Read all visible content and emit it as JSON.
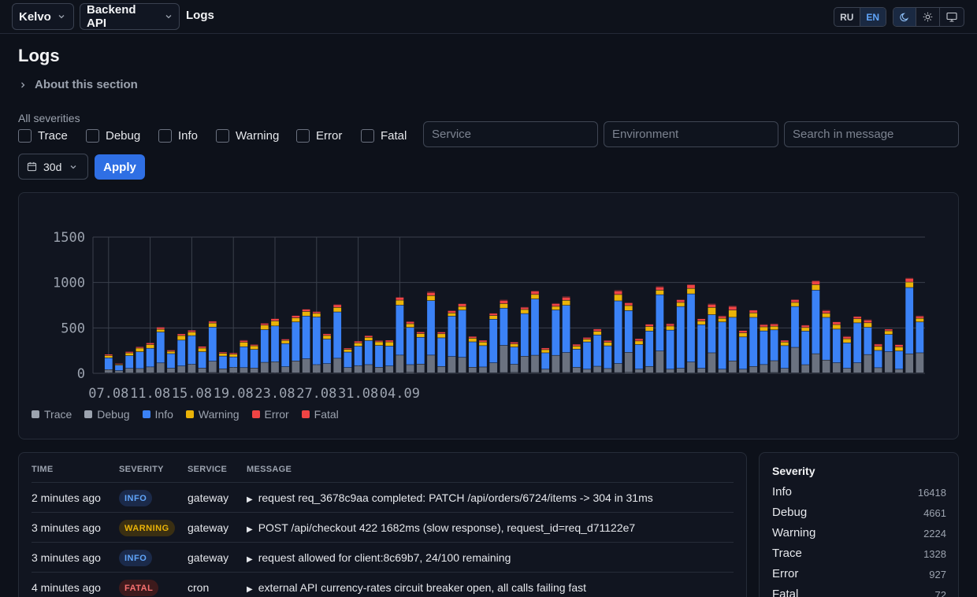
{
  "header": {
    "org": "Kelvo",
    "project": "Backend API",
    "breadcrumb": "Logs",
    "lang": [
      "RU",
      "EN"
    ],
    "lang_active": "EN",
    "themes": [
      "moon-icon",
      "sun-icon",
      "monitor-icon"
    ]
  },
  "page": {
    "title": "Logs",
    "about": "About this section"
  },
  "filters": {
    "all_label": "All severities",
    "severities": [
      "Trace",
      "Debug",
      "Info",
      "Warning",
      "Error",
      "Fatal"
    ],
    "service_placeholder": "Service",
    "environment_placeholder": "Environment",
    "search_placeholder": "Search in message",
    "range": "30d",
    "apply": "Apply"
  },
  "chart_data": {
    "type": "bar",
    "stacked": true,
    "ylim": [
      0,
      1500
    ],
    "yticks": [
      0,
      500,
      1000,
      1500
    ],
    "xtick_labels": [
      {
        "label": "07.08",
        "index": 1
      },
      {
        "label": "11.08",
        "index": 5
      },
      {
        "label": "15.08",
        "index": 9
      },
      {
        "label": "19.08",
        "index": 13
      },
      {
        "label": "23.08",
        "index": 17
      },
      {
        "label": "27.08",
        "index": 21
      },
      {
        "label": "31.08",
        "index": 25
      },
      {
        "label": "04.09",
        "index": 29
      }
    ],
    "legend_position": "bottom-left",
    "series": [
      {
        "name": "Trace",
        "color": "#9ca3af",
        "values": [
          5,
          3,
          2,
          2,
          2,
          3,
          2,
          4,
          3,
          2,
          3,
          6,
          2,
          3,
          2,
          3,
          3,
          4,
          5,
          3,
          3,
          3,
          4,
          3,
          6,
          2,
          3,
          4,
          3,
          3,
          8,
          4,
          3,
          3,
          2,
          3,
          4,
          2,
          3,
          5,
          7,
          5,
          6,
          3,
          5,
          6,
          3,
          3,
          5,
          5,
          5,
          8,
          4,
          3,
          3,
          3,
          3,
          2,
          3,
          3,
          3,
          4,
          3,
          3,
          4,
          6,
          2,
          3,
          2,
          3,
          3,
          4,
          3,
          3,
          4,
          4,
          5,
          3,
          2,
          3
        ]
      },
      {
        "name": "Debug",
        "color": "#9ca3af",
        "values": [
          0,
          35,
          25,
          50,
          48,
          65,
          110,
          50,
          75,
          95,
          52,
          125,
          45,
          60,
          58,
          52,
          115,
          120,
          65,
          130,
          155,
          90,
          100,
          160,
          55,
          80,
          90,
          60,
          75,
          195,
          85,
          95,
          195,
          70,
          180,
          170,
          60,
          65,
          110,
          300,
          90,
          180,
          190,
          40,
          190,
          220,
          60,
          40,
          70,
          45,
          100,
          220,
          40,
          70,
          240,
          40,
          50,
          120,
          50,
          220,
          40,
          130,
          40,
          70,
          90,
          130,
          50,
          280,
          90,
          210,
          140,
          110,
          50,
          110,
          200,
          55,
          230,
          40,
          210,
          220
        ]
      },
      {
        "name": "Info",
        "color": "#3b82f6",
        "values": [
          0,
          130,
          60,
          140,
          185,
          205,
          340,
          160,
          285,
          315,
          180,
          375,
          140,
          115,
          230,
          205,
          360,
          395,
          255,
          430,
          470,
          525,
          270,
          510,
          170,
          215,
          265,
          240,
          220,
          550,
          410,
          295,
          600,
          315,
          445,
          520,
          280,
          235,
          480,
          410,
          190,
          470,
          620,
          180,
          500,
          520,
          200,
          300,
          345,
          250,
          690,
          460,
          270,
          390,
          620,
          430,
          680,
          750,
          480,
          420,
          520,
          480,
          355,
          540,
          370,
          340,
          250,
          450,
          370,
          700,
          470,
          370,
          280,
          440,
          300,
          190,
          190,
          200,
          730,
          340
        ]
      },
      {
        "name": "Warning",
        "color": "#eab308",
        "values": [
          0,
          25,
          10,
          30,
          40,
          40,
          30,
          25,
          50,
          40,
          40,
          45,
          30,
          30,
          50,
          40,
          50,
          55,
          35,
          45,
          50,
          40,
          40,
          50,
          30,
          35,
          35,
          40,
          45,
          55,
          40,
          40,
          55,
          45,
          35,
          40,
          40,
          40,
          40,
          50,
          35,
          45,
          50,
          35,
          40,
          55,
          35,
          30,
          40,
          40,
          70,
          55,
          40,
          50,
          50,
          45,
          45,
          60,
          40,
          80,
          40,
          80,
          45,
          50,
          45,
          40,
          40,
          45,
          40,
          60,
          45,
          50,
          45,
          45,
          50,
          45,
          40,
          45,
          60,
          40
        ]
      },
      {
        "name": "Error",
        "color": "#ef4444",
        "values": [
          0,
          15,
          10,
          15,
          15,
          20,
          20,
          15,
          20,
          20,
          20,
          20,
          15,
          15,
          20,
          15,
          20,
          25,
          15,
          25,
          25,
          20,
          20,
          30,
          15,
          20,
          20,
          15,
          20,
          30,
          25,
          20,
          35,
          20,
          25,
          30,
          20,
          20,
          25,
          35,
          20,
          25,
          35,
          20,
          30,
          35,
          20,
          20,
          25,
          20,
          40,
          30,
          25,
          25,
          35,
          25,
          30,
          40,
          25,
          35,
          25,
          40,
          25,
          30,
          25,
          25,
          20,
          30,
          25,
          40,
          30,
          30,
          25,
          25,
          30,
          25,
          20,
          25,
          40,
          25
        ]
      },
      {
        "name": "Fatal",
        "color": "#ef4444",
        "values": [
          0,
          5,
          3,
          5,
          5,
          5,
          8,
          5,
          5,
          5,
          5,
          6,
          5,
          4,
          6,
          5,
          6,
          6,
          5,
          6,
          6,
          5,
          5,
          7,
          5,
          5,
          5,
          5,
          5,
          7,
          5,
          5,
          8,
          5,
          6,
          7,
          5,
          5,
          6,
          8,
          5,
          6,
          8,
          5,
          7,
          8,
          5,
          5,
          6,
          5,
          8,
          7,
          5,
          6,
          8,
          6,
          6,
          8,
          6,
          7,
          6,
          8,
          6,
          6,
          6,
          6,
          5,
          7,
          6,
          8,
          7,
          6,
          6,
          6,
          7,
          6,
          5,
          6,
          8,
          6
        ]
      }
    ]
  },
  "table": {
    "headers": [
      "TIME",
      "SEVERITY",
      "SERVICE",
      "MESSAGE"
    ],
    "rows": [
      {
        "time": "2 minutes ago",
        "severity": "INFO",
        "service": "gateway",
        "message": "request req_3678c9aa completed: PATCH /api/orders/6724/items -> 304 in 31ms"
      },
      {
        "time": "3 minutes ago",
        "severity": "WARNING",
        "service": "gateway",
        "message": "POST /api/checkout 422 1682ms (slow response), request_id=req_d71122e7"
      },
      {
        "time": "3 minutes ago",
        "severity": "INFO",
        "service": "gateway",
        "message": "request allowed for client:8c69b7, 24/100 remaining"
      },
      {
        "time": "4 minutes ago",
        "severity": "FATAL",
        "service": "cron",
        "message": "external API currency-rates circuit breaker open, all calls failing fast"
      }
    ]
  },
  "severity_summary": {
    "title": "Severity",
    "items": [
      {
        "name": "Info",
        "count": "16418"
      },
      {
        "name": "Debug",
        "count": "4661"
      },
      {
        "name": "Warning",
        "count": "2224"
      },
      {
        "name": "Trace",
        "count": "1328"
      },
      {
        "name": "Error",
        "count": "927"
      },
      {
        "name": "Fatal",
        "count": "72"
      }
    ]
  }
}
